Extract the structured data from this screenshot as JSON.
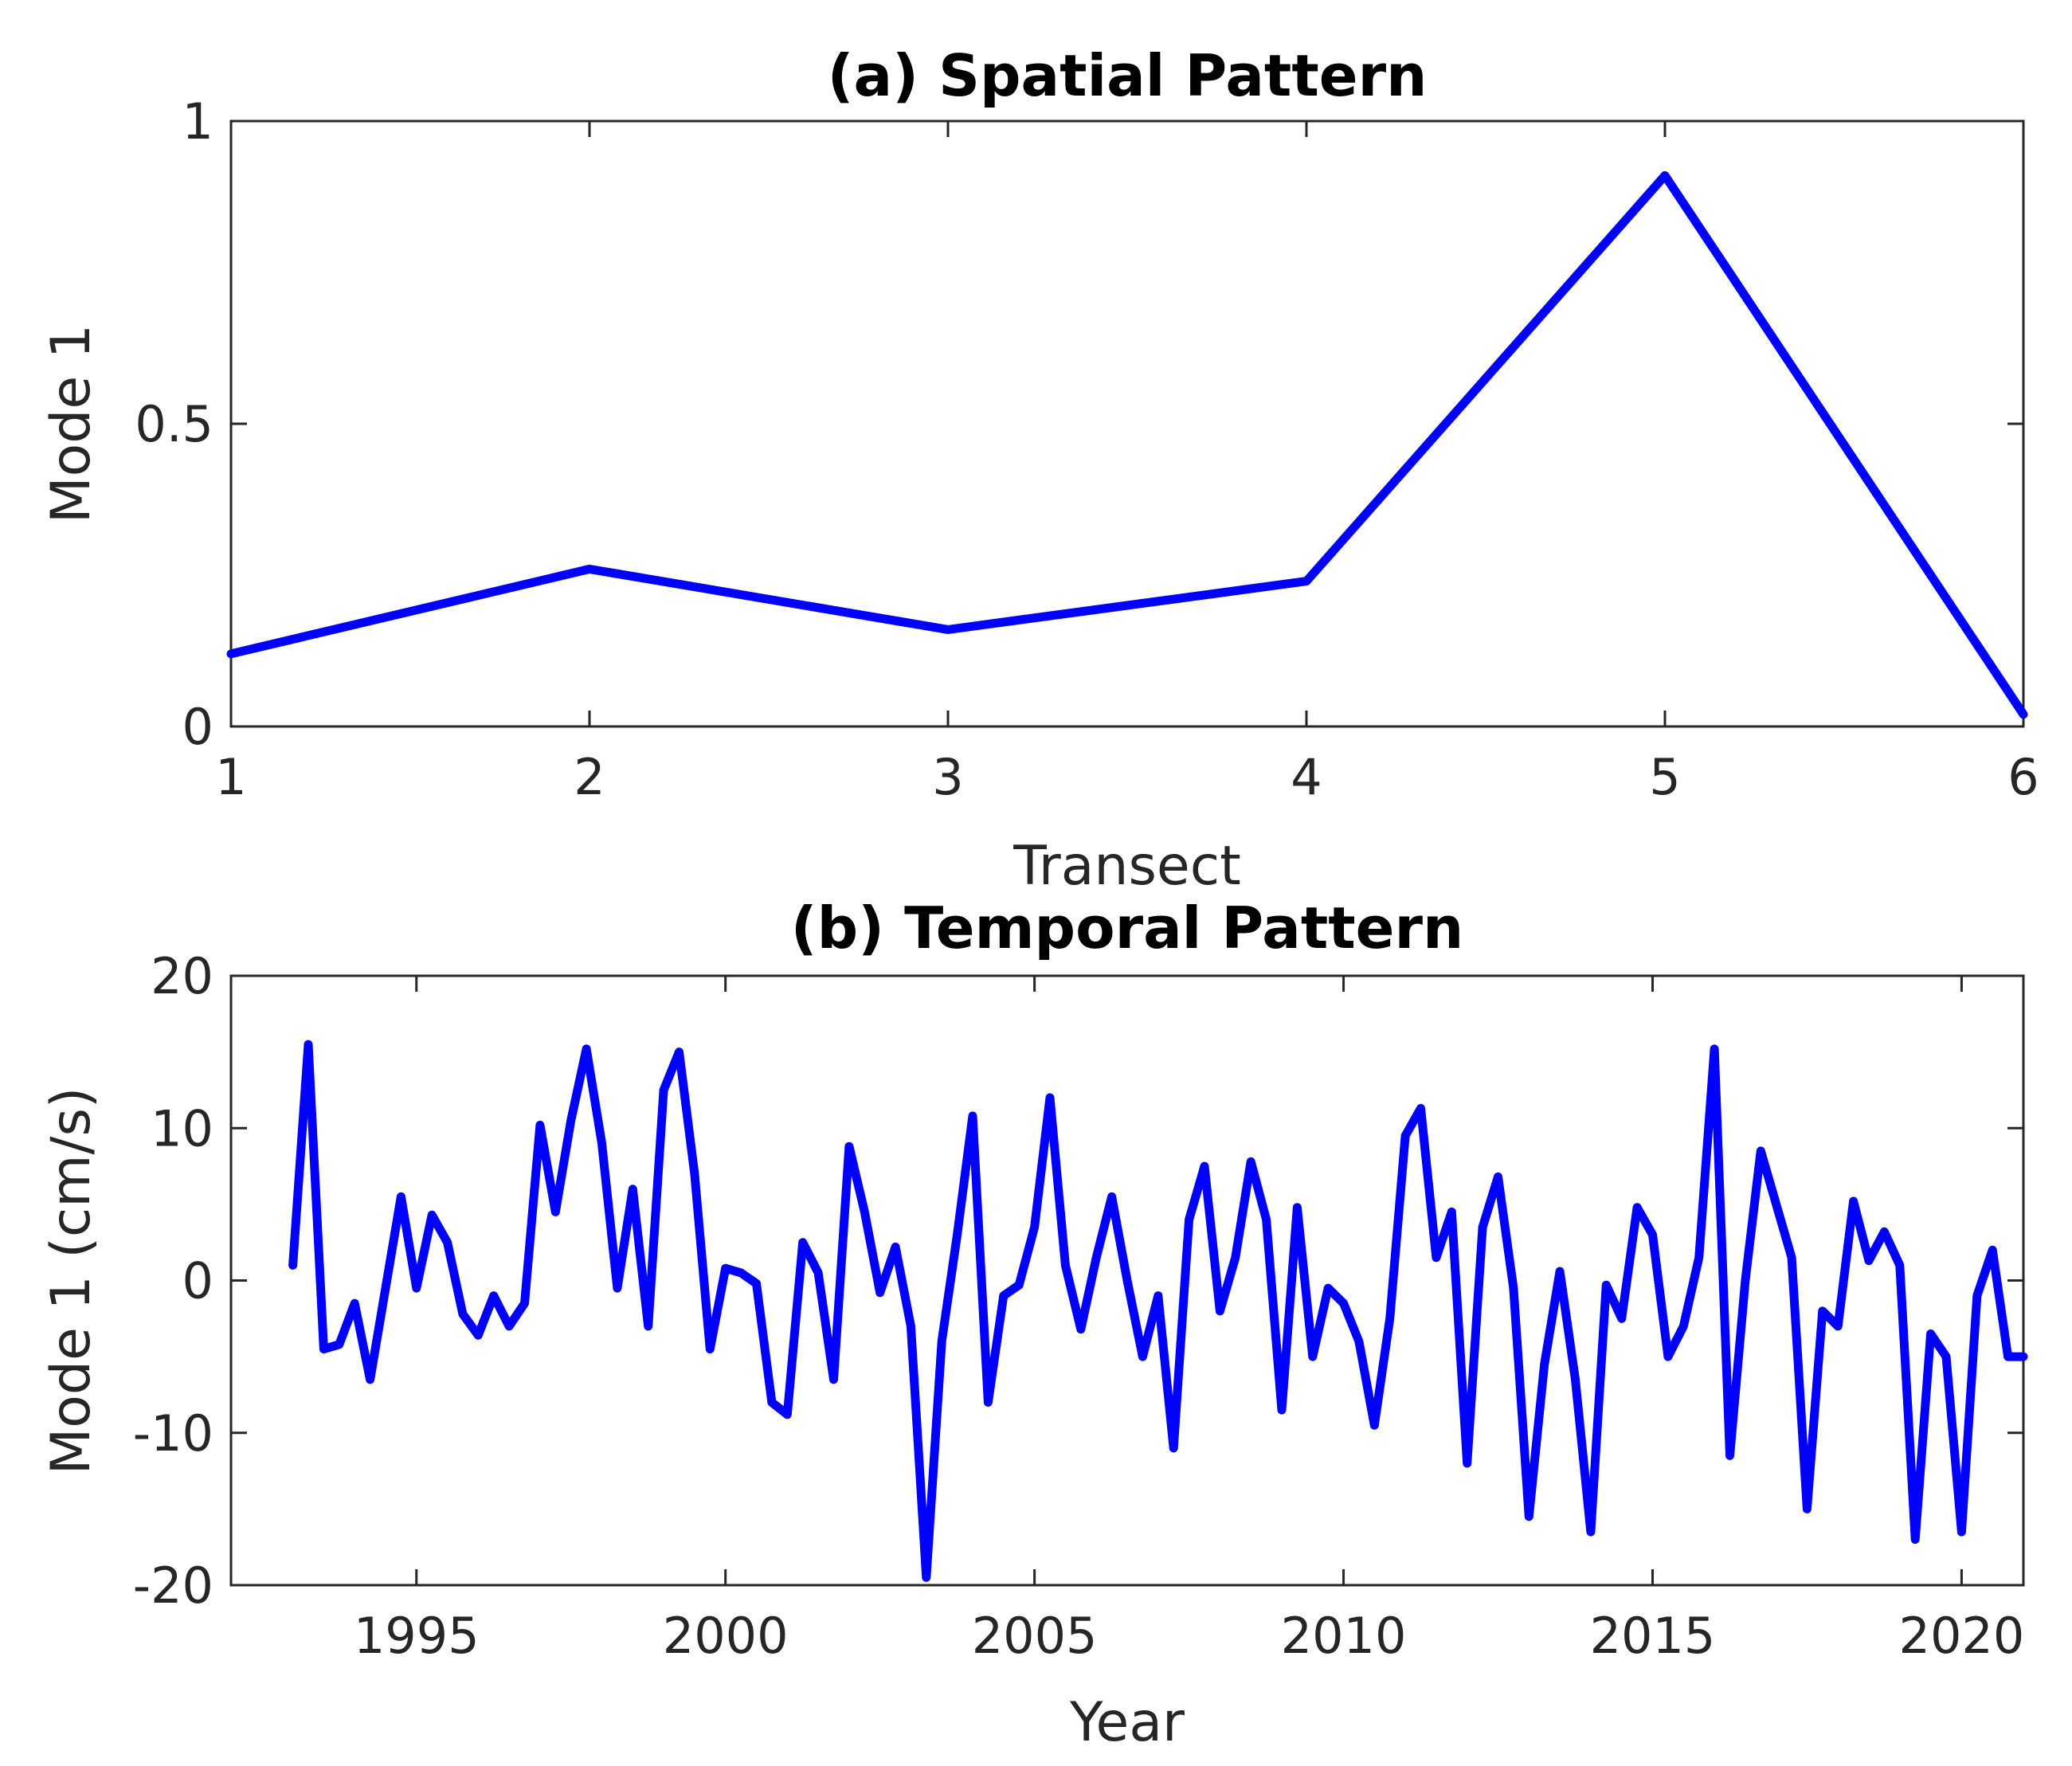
{
  "chart_data": [
    {
      "type": "line",
      "title": "(a) Spatial Pattern",
      "xlabel": "Transect",
      "ylabel": "Mode 1",
      "xlim": [
        1,
        6
      ],
      "ylim": [
        0,
        1
      ],
      "xticks": [
        1,
        2,
        3,
        4,
        5,
        6
      ],
      "xtick_labels": [
        "1",
        "2",
        "3",
        "4",
        "5",
        "6"
      ],
      "yticks": [
        0,
        0.5,
        1
      ],
      "ytick_labels": [
        "0",
        "0.5",
        "1"
      ],
      "color": "#0000ff",
      "x": [
        1,
        2,
        3,
        4,
        5,
        6
      ],
      "values": [
        0.12,
        0.26,
        0.16,
        0.24,
        0.91,
        0.02
      ]
    },
    {
      "type": "line",
      "title": "(b) Temporal Pattern",
      "xlabel": "Year",
      "ylabel": "Mode 1 (cm/s)",
      "xlim": [
        1992.0,
        2021.0
      ],
      "ylim": [
        -20,
        20
      ],
      "xticks": [
        1995,
        2000,
        2005,
        2010,
        2015,
        2020
      ],
      "xtick_labels": [
        "1995",
        "2000",
        "2005",
        "2010",
        "2015",
        "2020"
      ],
      "yticks": [
        -20,
        -10,
        0,
        10,
        20
      ],
      "ytick_labels": [
        "-20",
        "-10",
        "0",
        "10",
        "20"
      ],
      "color": "#0000ff",
      "x": [
        1993.0,
        1993.25,
        1993.5,
        1993.75,
        1994.0,
        1994.25,
        1994.5,
        1994.75,
        1995.0,
        1995.25,
        1995.5,
        1995.75,
        1996.0,
        1996.25,
        1996.5,
        1996.75,
        1997.0,
        1997.25,
        1997.5,
        1997.75,
        1998.0,
        1998.25,
        1998.5,
        1998.75,
        1999.0,
        1999.25,
        1999.5,
        1999.75,
        2000.0,
        2000.25,
        2000.5,
        2000.75,
        2001.0,
        2001.25,
        2001.5,
        2001.75,
        2002.0,
        2002.25,
        2002.5,
        2002.75,
        2003.0,
        2003.25,
        2003.5,
        2003.75,
        2004.0,
        2004.25,
        2004.5,
        2004.75,
        2005.0,
        2005.25,
        2005.5,
        2005.75,
        2006.0,
        2006.25,
        2006.5,
        2006.75,
        2007.0,
        2007.25,
        2007.5,
        2007.75,
        2008.0,
        2008.25,
        2008.5,
        2008.75,
        2009.0,
        2009.25,
        2009.5,
        2009.75,
        2010.0,
        2010.25,
        2010.5,
        2010.75,
        2011.0,
        2011.25,
        2011.5,
        2011.75,
        2012.0,
        2012.25,
        2012.5,
        2012.75,
        2013.0,
        2013.25,
        2013.5,
        2013.75,
        2014.0,
        2014.25,
        2014.5,
        2014.75,
        2015.0,
        2015.25,
        2015.5,
        2015.75,
        2016.0,
        2016.25,
        2016.5,
        2016.75,
        2017.0,
        2017.25,
        2017.5,
        2017.75,
        2018.0,
        2018.25,
        2018.5,
        2018.75,
        2019.0,
        2019.25,
        2019.5,
        2019.75,
        2020.0,
        2020.25,
        2020.5,
        2020.75,
        2021.0
      ],
      "values": [
        1,
        15.5,
        -4.5,
        -4.2,
        -1.5,
        -6.5,
        -0.5,
        5.5,
        -0.5,
        4.3,
        2.5,
        -2.2,
        -3.6,
        -1.0,
        -3.0,
        -1.5,
        10.2,
        4.5,
        10.5,
        15.2,
        9.0,
        -0.5,
        6.0,
        -3.0,
        12.5,
        15.0,
        7.0,
        -4.5,
        0.8,
        0.5,
        -0.2,
        -8.0,
        -8.8,
        2.5,
        0.5,
        -6.5,
        8.8,
        4.5,
        -0.8,
        2.2,
        -3.0,
        -19.5,
        -4.0,
        3.0,
        10.8,
        -8.0,
        -1.0,
        -0.3,
        3.5,
        12.0,
        1.0,
        -3.2,
        1.5,
        5.5,
        0.0,
        -5.0,
        -1.0,
        -11.0,
        4.0,
        7.5,
        -2.0,
        1.5,
        7.8,
        4.0,
        -8.5,
        4.8,
        -5.0,
        -0.5,
        -1.5,
        -4.0,
        -9.5,
        -2.5,
        9.5,
        11.3,
        1.5,
        4.5,
        -12.0,
        3.5,
        6.8,
        -0.5,
        -15.5,
        -5.5,
        0.6,
        -6.5,
        -16.5,
        -0.3,
        -2.5,
        4.8,
        3.0,
        -5.0,
        -3.0,
        1.5,
        15.2,
        -11.5,
        0.0,
        8.5,
        5.0,
        1.5,
        -15.0,
        -2.0,
        -3.0,
        5.2,
        1.3,
        3.2,
        1.0,
        -17.0,
        -3.5,
        -5.0,
        -16.5,
        -1.0,
        2.0,
        -5.0,
        -5.0
      ]
    }
  ]
}
